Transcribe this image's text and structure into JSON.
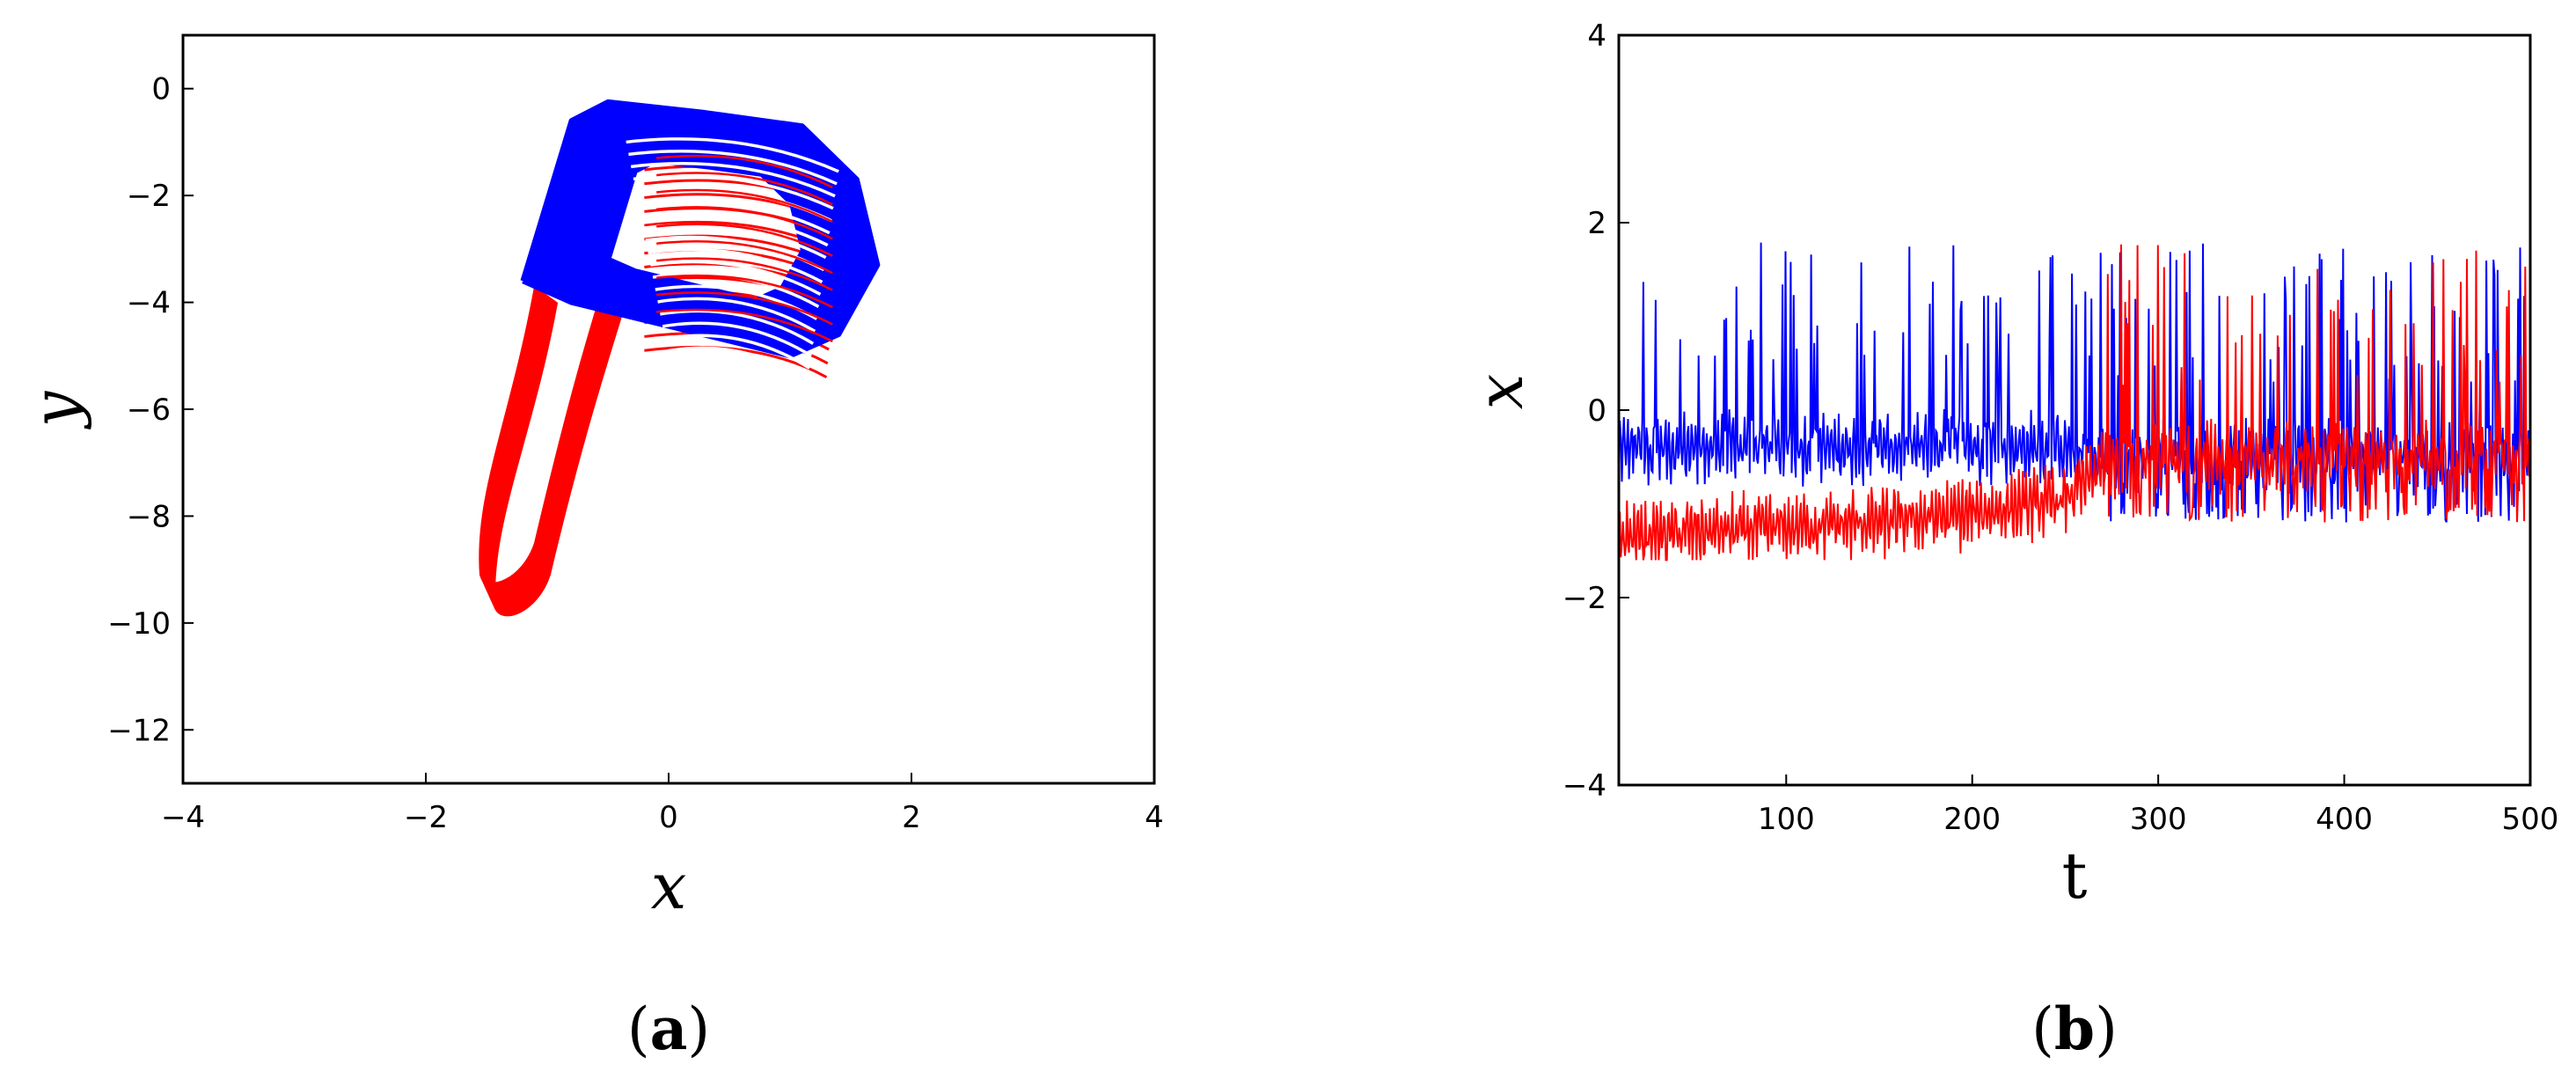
{
  "chart_data": [
    {
      "panel": "(a)",
      "panel_letter": "a",
      "type": "line",
      "xlabel": "x",
      "ylabel": "y",
      "xlim": [
        -4,
        4
      ],
      "ylim": [
        -13,
        1
      ],
      "xticks": [
        -4,
        -2,
        0,
        2,
        4
      ],
      "yticks": [
        0,
        -2,
        -4,
        -6,
        -8,
        -10,
        -12
      ],
      "grid": false,
      "legend": "none",
      "series": [
        {
          "color": "#ff0000",
          "description_points": [
            [
              -1.45,
              -9.7
            ],
            [
              -1.55,
              -9.3
            ],
            [
              -1.4,
              -8.0
            ],
            [
              -1.2,
              -6.0
            ],
            [
              -1.0,
              -4.5
            ],
            [
              -0.9,
              -3.8
            ],
            [
              -0.6,
              -4.6
            ],
            [
              -0.5,
              -6.0
            ]
          ],
          "values_x": [
            -1.5,
            -1.4,
            -1.25,
            -1.1,
            -0.95,
            -0.8
          ],
          "values_y": [
            -9.7,
            -8.5,
            -7.0,
            -5.6,
            -4.5,
            -3.8
          ]
        },
        {
          "color": "#0000ff",
          "values_x": [
            -1.2,
            -0.8,
            -0.5,
            0.2,
            1.0,
            1.5,
            1.7,
            1.4,
            1.0,
            0.0,
            -0.9,
            -1.2
          ],
          "values_y": [
            -3.6,
            -1.0,
            -0.3,
            -0.4,
            -0.8,
            -1.8,
            -3.3,
            -4.6,
            -5.0,
            -4.4,
            -4.0,
            -3.6
          ]
        }
      ]
    },
    {
      "panel": "(b)",
      "panel_letter": "b",
      "type": "line",
      "xlabel": "t",
      "ylabel": "x",
      "xlim": [
        10,
        500
      ],
      "ylim": [
        -4,
        4
      ],
      "xticks": [
        100,
        200,
        300,
        400,
        500
      ],
      "yticks": [
        4,
        2,
        0,
        -2,
        -4
      ],
      "grid": false,
      "legend": "none",
      "series": [
        {
          "color": "#0000ff",
          "t": [
            10,
            50,
            100,
            150,
            200,
            250,
            270,
            300,
            350,
            400,
            450,
            500
          ],
          "baseline": [
            -0.4,
            -0.4,
            -0.4,
            -0.4,
            -0.4,
            -0.4,
            -0.6,
            -0.5,
            -0.5,
            -0.5,
            -0.5,
            -0.5
          ],
          "spike_max": 1.8,
          "spike_min": -1.2
        },
        {
          "color": "#ff0000",
          "t": [
            10,
            50,
            100,
            150,
            200,
            250,
            270,
            300,
            350,
            400,
            450,
            500
          ],
          "baseline": [
            -1.35,
            -1.3,
            -1.25,
            -1.2,
            -1.1,
            -0.95,
            -0.6,
            -0.5,
            -0.5,
            -0.5,
            -0.5,
            -0.5
          ],
          "spike_max": 1.8,
          "spike_min": -1.2
        }
      ]
    }
  ]
}
